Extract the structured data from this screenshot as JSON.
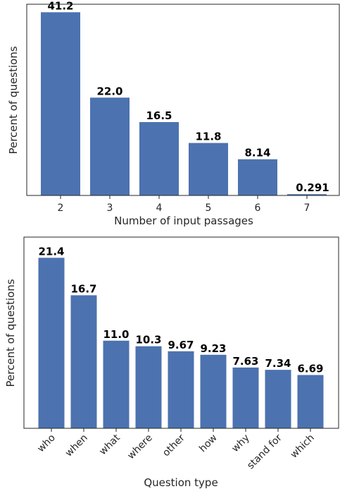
{
  "chart_data": [
    {
      "type": "bar",
      "xlabel": "Number of input passages",
      "ylabel": "Percent of questions",
      "categories": [
        "2",
        "3",
        "4",
        "5",
        "6",
        "7"
      ],
      "values": [
        41.2,
        22.0,
        16.5,
        11.8,
        8.14,
        0.291
      ],
      "value_labels": [
        "41.2",
        "22.0",
        "16.5",
        "11.8",
        "8.14",
        "0.291"
      ],
      "ylim": [
        0,
        43
      ],
      "grid": false,
      "bar_color": "#4c72b0"
    },
    {
      "type": "bar",
      "xlabel": "Question type",
      "ylabel": "Percent of questions",
      "categories": [
        "who",
        "when",
        "what",
        "where",
        "other",
        "how",
        "why",
        "stand for",
        "which"
      ],
      "values": [
        21.4,
        16.7,
        11.0,
        10.3,
        9.67,
        9.23,
        7.63,
        7.34,
        6.69
      ],
      "value_labels": [
        "21.4",
        "16.7",
        "11.0",
        "10.3",
        "9.67",
        "9.23",
        "7.63",
        "7.34",
        "6.69"
      ],
      "ylim": [
        0,
        24
      ],
      "grid": false,
      "bar_color": "#4c72b0"
    }
  ]
}
